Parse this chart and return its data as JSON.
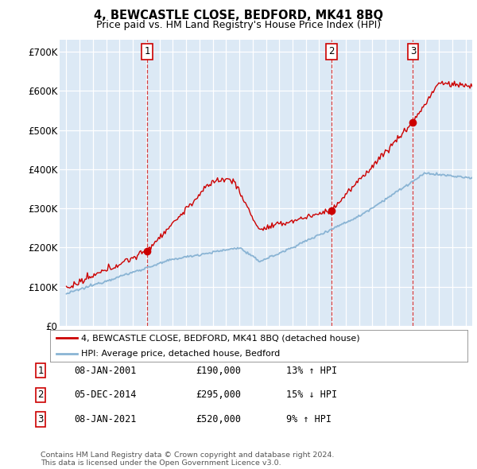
{
  "title": "4, BEWCASTLE CLOSE, BEDFORD, MK41 8BQ",
  "subtitle": "Price paid vs. HM Land Registry's House Price Index (HPI)",
  "plot_bg_color": "#dce9f5",
  "grid_color": "#ffffff",
  "sale_line_color": "#cc0000",
  "hpi_line_color": "#8ab4d4",
  "legend_entries": [
    "4, BEWCASTLE CLOSE, BEDFORD, MK41 8BQ (detached house)",
    "HPI: Average price, detached house, Bedford"
  ],
  "table_rows": [
    [
      "1",
      "08-JAN-2001",
      "£190,000",
      "13% ↑ HPI"
    ],
    [
      "2",
      "05-DEC-2014",
      "£295,000",
      "15% ↓ HPI"
    ],
    [
      "3",
      "08-JAN-2021",
      "£520,000",
      "9% ↑ HPI"
    ]
  ],
  "footnote": "Contains HM Land Registry data © Crown copyright and database right 2024.\nThis data is licensed under the Open Government Licence v3.0.",
  "ylim": [
    0,
    730000
  ],
  "yticks": [
    0,
    100000,
    200000,
    300000,
    400000,
    500000,
    600000,
    700000
  ],
  "ytick_labels": [
    "£0",
    "£100K",
    "£200K",
    "£300K",
    "£400K",
    "£500K",
    "£600K",
    "£700K"
  ],
  "start_year": 1995,
  "end_year": 2025,
  "sale_events": [
    {
      "t": 6.08,
      "value": 190000,
      "label": "1"
    },
    {
      "t": 19.92,
      "value": 295000,
      "label": "2"
    },
    {
      "t": 26.05,
      "value": 520000,
      "label": "3"
    }
  ]
}
